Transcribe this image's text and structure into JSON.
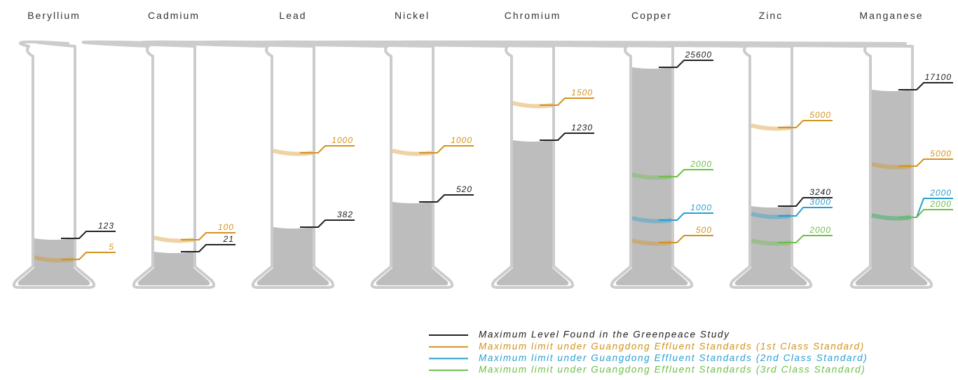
{
  "cylinders": [
    {
      "name": "Beryllium",
      "levels": {
        "found": 123,
        "class1": 5
      }
    },
    {
      "name": "Cadmium",
      "levels": {
        "found": 21,
        "class1": 100
      }
    },
    {
      "name": "Lead",
      "levels": {
        "found": 382,
        "class1": 1000
      }
    },
    {
      "name": "Nickel",
      "levels": {
        "found": 520,
        "class1": 1000
      }
    },
    {
      "name": "Chromium",
      "levels": {
        "found": 1230,
        "class1": 1500
      }
    },
    {
      "name": "Copper",
      "levels": {
        "found": 25600,
        "class1": 500,
        "class2": 1000,
        "class3": 2000
      }
    },
    {
      "name": "Zinc",
      "levels": {
        "found": 3240,
        "class1": 5000,
        "class2": 3000,
        "class3": 2000
      }
    },
    {
      "name": "Manganese",
      "levels": {
        "found": 17100,
        "class1": 5000,
        "class2": 2000,
        "class3": 2000
      }
    }
  ],
  "legend": {
    "found": {
      "label": "Maximum Level Found in the Greenpeace Study",
      "color": "#222222"
    },
    "class1": {
      "label": "Maximum limit under Guangdong Effluent Standards (1st Class Standard)",
      "color": "#d4921e"
    },
    "class2": {
      "label": "Maximum limit under Guangdong Effluent Standards (2nd Class Standard)",
      "color": "#2a9fd0"
    },
    "class3": {
      "label": "Maximum limit under Guangdong Effluent Standards (3rd Class Standard)",
      "color": "#6cbf45"
    }
  }
}
